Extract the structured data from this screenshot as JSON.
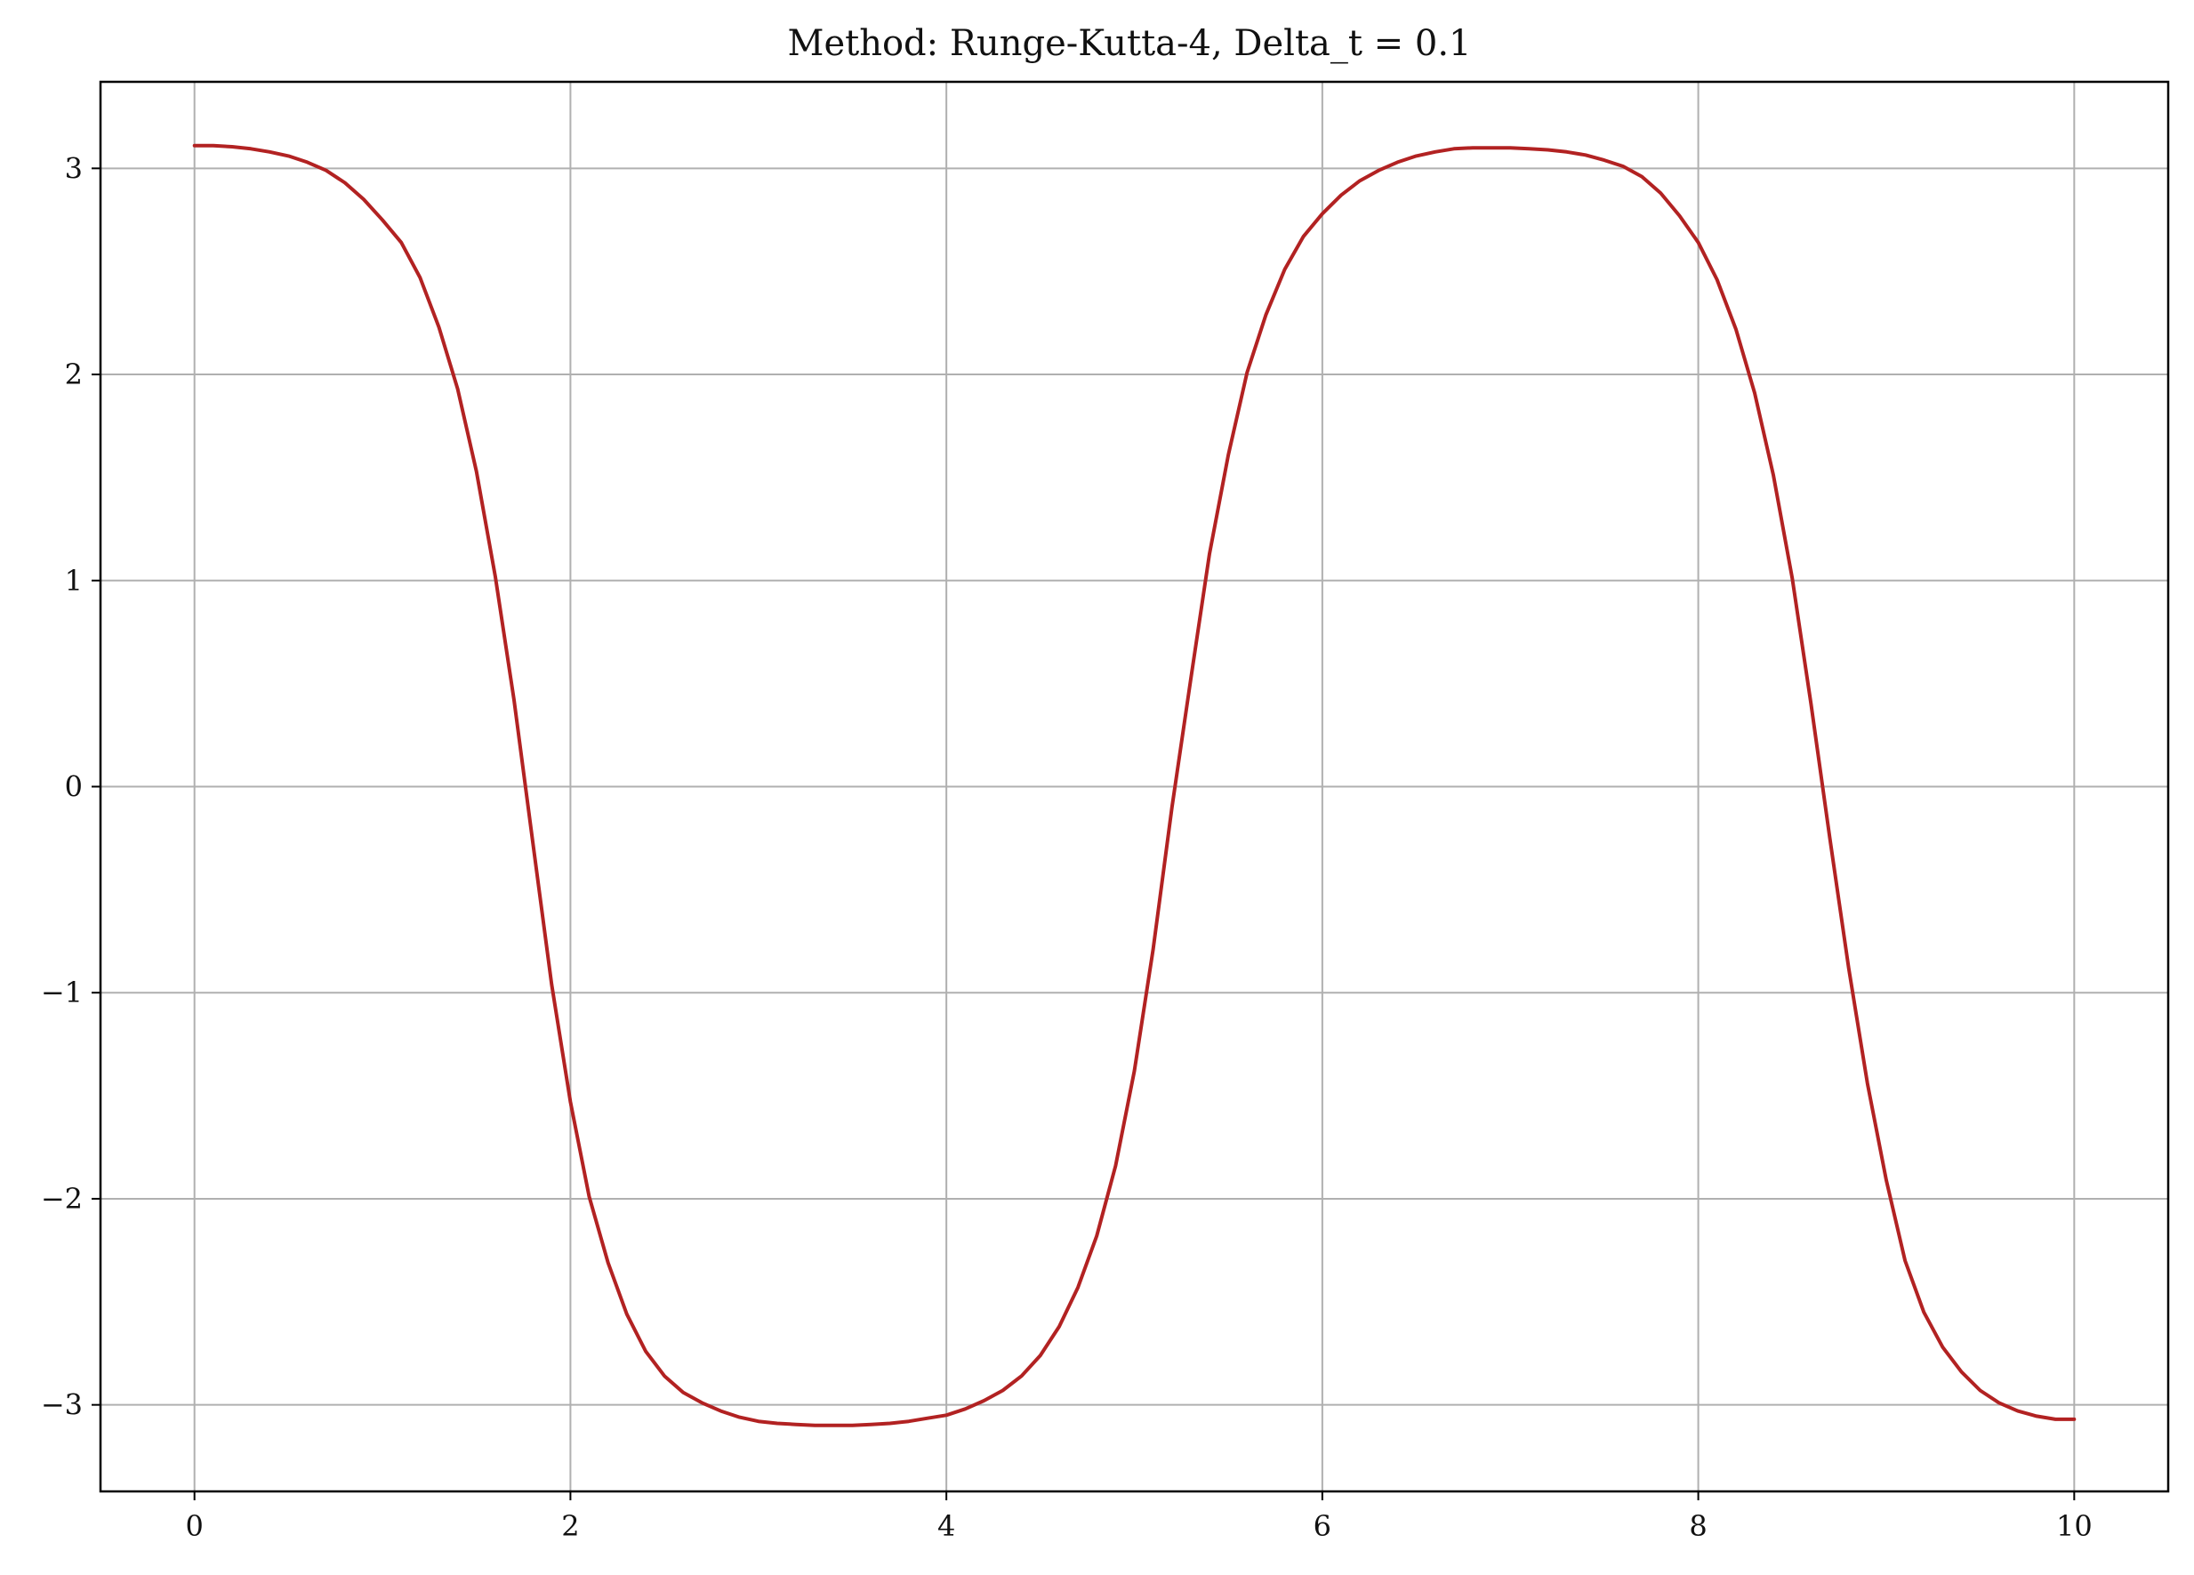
{
  "chart_data": {
    "type": "line",
    "title": "Method: Runge-Kutta-4, Delta_t = 0.1",
    "xlabel": "",
    "ylabel": "",
    "xlim": [
      -0.5,
      10.5
    ],
    "ylim": [
      -3.42,
      3.42
    ],
    "x_ticks": [
      0,
      2,
      4,
      6,
      8,
      10
    ],
    "x_tick_labels": [
      "0",
      "2",
      "4",
      "6",
      "8",
      "10"
    ],
    "y_ticks": [
      3,
      2,
      1,
      0,
      -1,
      -2,
      -3
    ],
    "y_tick_labels": [
      "3",
      "2",
      "1",
      "0",
      "−1",
      "−2",
      "−3"
    ],
    "grid": true,
    "line_color": "#b22222",
    "series": [
      {
        "x": [
          0,
          0.1,
          0.2,
          0.3,
          0.4,
          0.5,
          0.6,
          0.7,
          0.8,
          0.9,
          1.0,
          1.1,
          1.2,
          1.3,
          1.4,
          1.5,
          1.6,
          1.7,
          1.8,
          1.9,
          2.0,
          2.1,
          2.2,
          2.3,
          2.4,
          2.5,
          2.6,
          2.7,
          2.8,
          2.9,
          3.0,
          3.1,
          3.2,
          3.3,
          3.4,
          3.5,
          3.6,
          3.7,
          3.8,
          3.9,
          4.0,
          4.1,
          4.2,
          4.3,
          4.4,
          4.5,
          4.6,
          4.7,
          4.8,
          4.9,
          5.0,
          5.1,
          5.2,
          5.3,
          5.4,
          5.5,
          5.6,
          5.7,
          5.8,
          5.9,
          6.0,
          6.1,
          6.2,
          6.3,
          6.4,
          6.5,
          6.6,
          6.7,
          6.8,
          6.9,
          7.0,
          7.1,
          7.2,
          7.3,
          7.4,
          7.5,
          7.6,
          7.7,
          7.8,
          7.9,
          8.0,
          8.1,
          8.2,
          8.3,
          8.4,
          8.5,
          8.6,
          8.7,
          8.8,
          8.9,
          9.0,
          9.1,
          9.2,
          9.3,
          9.4,
          9.5,
          9.6,
          9.7,
          9.8,
          9.9,
          10.0
        ],
        "y": [
          3.11,
          3.11,
          3.105,
          3.095,
          3.08,
          3.06,
          3.03,
          2.99,
          2.93,
          2.85,
          2.75,
          2.64,
          2.47,
          2.23,
          1.93,
          1.53,
          1.02,
          0.42,
          -0.27,
          -0.96,
          -1.53,
          -1.99,
          -2.31,
          -2.56,
          -2.74,
          -2.86,
          -2.94,
          -2.99,
          -3.03,
          -3.06,
          -3.08,
          -3.09,
          -3.095,
          -3.1,
          -3.1,
          -3.1,
          -3.095,
          -3.09,
          -3.08,
          -3.065,
          -3.05,
          -3.02,
          -2.98,
          -2.93,
          -2.86,
          -2.76,
          -2.62,
          -2.43,
          -2.18,
          -1.84,
          -1.38,
          -0.79,
          -0.1,
          0.52,
          1.13,
          1.61,
          2.01,
          2.29,
          2.51,
          2.67,
          2.78,
          2.87,
          2.94,
          2.99,
          3.03,
          3.06,
          3.08,
          3.095,
          3.1,
          3.1,
          3.1,
          3.095,
          3.09,
          3.08,
          3.065,
          3.04,
          3.01,
          2.96,
          2.88,
          2.77,
          2.64,
          2.46,
          2.22,
          1.91,
          1.51,
          1.01,
          0.4,
          -0.25,
          -0.88,
          -1.44,
          -1.91,
          -2.3,
          -2.55,
          -2.72,
          -2.84,
          -2.93,
          -2.99,
          -3.03,
          -3.055,
          -3.07,
          -3.07
        ]
      }
    ]
  }
}
